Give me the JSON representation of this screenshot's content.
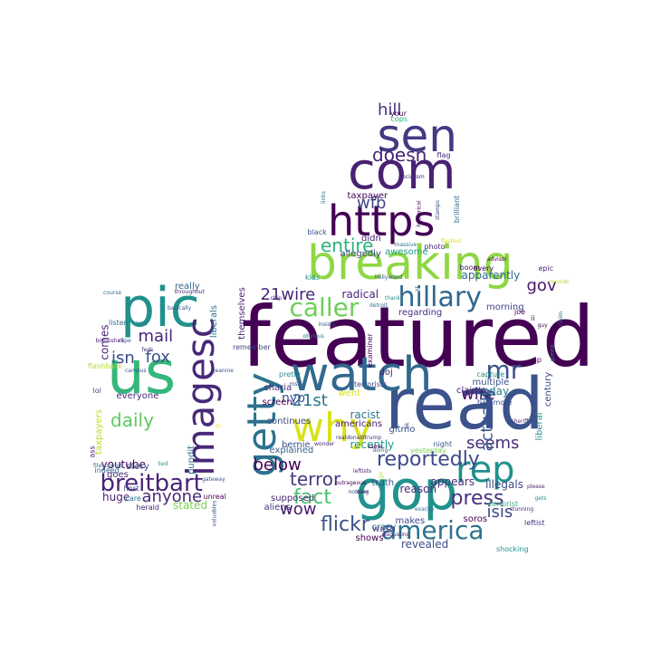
{
  "words": [
    {
      "text": "featured",
      "color": "#440154"
    },
    {
      "text": "read",
      "color": "#3b528b"
    },
    {
      "text": "gop",
      "color": "#21918c"
    },
    {
      "text": "breaking",
      "color": "#8fd744"
    },
    {
      "text": "watch",
      "color": "#31688e"
    },
    {
      "text": "com",
      "color": "#482173"
    },
    {
      "text": "https",
      "color": "#440154"
    },
    {
      "text": "sen",
      "color": "#443983"
    },
    {
      "text": "us",
      "color": "#35b779"
    },
    {
      "text": "pic",
      "color": "#21918c"
    },
    {
      "text": "imagesc",
      "color": "#482878"
    },
    {
      "text": "getty",
      "color": "#2c728e"
    },
    {
      "text": "why",
      "color": "#d8e219"
    },
    {
      "text": "rep",
      "color": "#21918c"
    },
    {
      "text": "hillary",
      "color": "#31688e"
    },
    {
      "text": "america",
      "color": "#2c728e"
    },
    {
      "text": "breitbart",
      "color": "#482475"
    },
    {
      "text": "reportedly",
      "color": "#3e4989"
    },
    {
      "text": "press",
      "color": "#46327e"
    },
    {
      "text": "caller",
      "color": "#6ece58"
    },
    {
      "text": "mr",
      "color": "#3b528b"
    },
    {
      "text": "daily",
      "color": "#5ec962"
    },
    {
      "text": "21wire",
      "color": "#482878"
    },
    {
      "text": "21st",
      "color": "#2c728e"
    },
    {
      "text": "fact",
      "color": "#4ac16d"
    },
    {
      "text": "flickr",
      "color": "#3b528b"
    },
    {
      "text": "terror",
      "color": "#443983"
    },
    {
      "text": "isis",
      "color": "#3e4989"
    },
    {
      "text": "anyone",
      "color": "#482878"
    },
    {
      "text": "entire",
      "color": "#2db27d"
    },
    {
      "text": "doesn",
      "color": "#482475"
    },
    {
      "text": "hill",
      "color": "#46327e"
    },
    {
      "text": "mail",
      "color": "#482475"
    },
    {
      "text": "fox",
      "color": "#3b528b"
    },
    {
      "text": "isn",
      "color": "#3e4989"
    },
    {
      "text": "below",
      "color": "#440154"
    },
    {
      "text": "wow",
      "color": "#481a6c"
    },
    {
      "text": "wire",
      "color": "#481a6c"
    },
    {
      "text": "seems",
      "color": "#472d7b"
    },
    {
      "text": "actually",
      "color": "#3b528b"
    },
    {
      "text": "wfb",
      "color": "#414487"
    },
    {
      "text": "gov",
      "color": "#481668"
    },
    {
      "text": "nyp",
      "color": "#3b528b"
    },
    {
      "text": "today",
      "color": "#287c8e"
    },
    {
      "text": "radical",
      "color": "#482475"
    },
    {
      "text": "racist",
      "color": "#2c728e"
    },
    {
      "text": "recently",
      "color": "#1f9a8a"
    },
    {
      "text": "illegals",
      "color": "#3e4989"
    },
    {
      "text": "appears",
      "color": "#472d7b"
    },
    {
      "text": "reason",
      "color": "#472d7b"
    },
    {
      "text": "revealed",
      "color": "#3e4989"
    },
    {
      "text": "aliens",
      "color": "#46327e"
    },
    {
      "text": "taxpayer",
      "color": "#440154"
    },
    {
      "text": "didn",
      "color": "#481a6c"
    },
    {
      "text": "americans",
      "color": "#48186a"
    },
    {
      "text": "regarding",
      "color": "#472d7b"
    },
    {
      "text": "morning",
      "color": "#414487"
    },
    {
      "text": "apparently",
      "color": "#31688e"
    },
    {
      "text": "allegedly",
      "color": "#404688"
    },
    {
      "text": "awesome",
      "color": "#1fa088"
    },
    {
      "text": "century",
      "color": "#3e4989"
    },
    {
      "text": "liberal",
      "color": "#21918c"
    },
    {
      "text": "stated",
      "color": "#7ad151"
    },
    {
      "text": "huge",
      "color": "#481f70"
    },
    {
      "text": "pundit",
      "color": "#2c728e"
    },
    {
      "text": "youtube",
      "color": "#440154"
    },
    {
      "text": "goes",
      "color": "#472d7b"
    },
    {
      "text": "comes",
      "color": "#482475"
    },
    {
      "text": "story",
      "color": "#3b528b"
    },
    {
      "text": "really",
      "color": "#31688e"
    },
    {
      "text": "everyone",
      "color": "#482878"
    },
    {
      "text": "liberals",
      "color": "#2c728e"
    },
    {
      "text": "taxpayers",
      "color": "#b5de2b"
    },
    {
      "text": "sharia",
      "color": "#472d7b"
    },
    {
      "text": "screen",
      "color": "#440154"
    },
    {
      "text": "continues",
      "color": "#3e4989"
    },
    {
      "text": "supposed",
      "color": "#482878"
    },
    {
      "text": "bernie",
      "color": "#3b528b"
    },
    {
      "text": "explained",
      "color": "#33638d"
    },
    {
      "text": "went",
      "color": "#d8e219"
    },
    {
      "text": "doj",
      "color": "#482475"
    },
    {
      "text": "multiple",
      "color": "#3b528b"
    },
    {
      "text": "claims",
      "color": "#482878"
    },
    {
      "text": "crazy",
      "color": "#2c728e"
    },
    {
      "text": "wasn",
      "color": "#46327e"
    },
    {
      "text": "shows",
      "color": "#440154"
    },
    {
      "text": "makes",
      "color": "#3e4989"
    },
    {
      "text": "truth",
      "color": "#3b528b"
    },
    {
      "text": "soros",
      "color": "#440154"
    },
    {
      "text": "black",
      "color": "#3b528b"
    },
    {
      "text": "kids",
      "color": "#21918c"
    },
    {
      "text": "boom",
      "color": "#482878"
    },
    {
      "text": "epic",
      "color": "#482475"
    },
    {
      "text": "joe",
      "color": "#440154"
    },
    {
      "text": "baltimore",
      "color": "#3b528b"
    },
    {
      "text": "remember",
      "color": "#404688"
    },
    {
      "text": "pretty",
      "color": "#21918c"
    },
    {
      "text": "examiner",
      "color": "#440154"
    },
    {
      "text": "capture",
      "color": "#21918c"
    },
    {
      "text": "night",
      "color": "#3b528b"
    },
    {
      "text": "yesterday",
      "color": "#7ad151"
    },
    {
      "text": "terrorists",
      "color": "#3e4989"
    },
    {
      "text": "terrorist",
      "color": "#2db27d"
    },
    {
      "text": "shocking",
      "color": "#21918c"
    },
    {
      "text": "leftist",
      "color": "#46327e"
    },
    {
      "text": "flag",
      "color": "#482878"
    },
    {
      "text": "your",
      "color": "#440154"
    },
    {
      "text": "cops",
      "color": "#2db27d"
    },
    {
      "text": "brilliant",
      "color": "#31688e"
    },
    {
      "text": "photo",
      "color": "#482878"
    },
    {
      "text": "every",
      "color": "#440154"
    },
    {
      "text": "hollywood",
      "color": "#3b528b"
    },
    {
      "text": "thanks",
      "color": "#21918c"
    },
    {
      "text": "detroit",
      "color": "#2c728e"
    },
    {
      "text": "indeed",
      "color": "#31688e"
    },
    {
      "text": "host",
      "color": "#3b528b"
    },
    {
      "text": "care",
      "color": "#2c728e"
    },
    {
      "text": "herald",
      "color": "#482475"
    },
    {
      "text": "gateway",
      "color": "#3b528b"
    },
    {
      "text": "unreal",
      "color": "#440154"
    },
    {
      "text": "ass",
      "color": "#482475"
    },
    {
      "text": "flashback",
      "color": "#b5de2b"
    },
    {
      "text": "campus",
      "color": "#3b528b"
    },
    {
      "text": "feds",
      "color": "#46327e"
    },
    {
      "text": "bombshell",
      "color": "#482475"
    },
    {
      "text": "lol",
      "color": "#3b528b"
    },
    {
      "text": "dc",
      "color": "#fde725"
    },
    {
      "text": "jeanine",
      "color": "#3b528b"
    },
    {
      "text": "listen",
      "color": "#2c728e"
    },
    {
      "text": "course",
      "color": "#2c728e"
    },
    {
      "text": "throughout",
      "color": "#482878"
    },
    {
      "text": "themselves",
      "color": "#482475"
    },
    {
      "text": "ap",
      "color": "#440154"
    },
    {
      "text": "ii",
      "color": "#440154"
    },
    {
      "text": "ms",
      "color": "#3b528b"
    },
    {
      "text": "gitmo",
      "color": "#3b528b"
    },
    {
      "text": "gets",
      "color": "#21918c"
    },
    {
      "text": "please",
      "color": "#482475"
    },
    {
      "text": "stunning",
      "color": "#482878"
    },
    {
      "text": "sheriff",
      "color": "#472d7b"
    },
    {
      "text": "claim",
      "color": "#2c728e"
    },
    {
      "text": "gonna",
      "color": "#21918c"
    },
    {
      "text": "records",
      "color": "#b5de2b"
    },
    {
      "text": "advisor",
      "color": "#440154"
    },
    {
      "text": "massive",
      "color": "#2c728e"
    },
    {
      "text": "flashed",
      "color": "#d8e219"
    },
    {
      "text": "links",
      "color": "#2c728e"
    },
    {
      "text": "hysterical",
      "color": "#440154"
    },
    {
      "text": "stamps",
      "color": "#3b528b"
    },
    {
      "text": "socialism",
      "color": "#482475"
    },
    {
      "text": "realdonaldtrump",
      "color": "#472d7b"
    },
    {
      "text": "same",
      "color": "#440154"
    },
    {
      "text": "doing",
      "color": "#3b528b"
    },
    {
      "text": "wonder",
      "color": "#482475"
    },
    {
      "text": "outrageous",
      "color": "#440154"
    },
    {
      "text": "nothing",
      "color": "#3b528b"
    },
    {
      "text": "ever",
      "color": "#482475"
    },
    {
      "text": "exactly",
      "color": "#2c728e"
    },
    {
      "text": "disgusting",
      "color": "#482475"
    },
    {
      "text": "valuables",
      "color": "#3b528b"
    },
    {
      "text": "filesupport",
      "color": "#2c728e"
    },
    {
      "text": "rape",
      "color": "#3b528b"
    },
    {
      "text": "intel",
      "color": "#2c728e"
    },
    {
      "text": "obvious",
      "color": "#2c728e"
    },
    {
      "text": "basically",
      "color": "#3b528b"
    },
    {
      "text": "go",
      "color": "#b5de2b"
    },
    {
      "text": "guy",
      "color": "#440154"
    },
    {
      "text": "ok",
      "color": "#3e4989"
    },
    {
      "text": "yr",
      "color": "#2c728e"
    },
    {
      "text": "chip",
      "color": "#482475"
    },
    {
      "text": "insists",
      "color": "#3b528b"
    },
    {
      "text": "lied",
      "color": "#21918c"
    },
    {
      "text": "leftists",
      "color": "#482475"
    },
    {
      "text": "nra",
      "color": "#2c728e"
    }
  ]
}
